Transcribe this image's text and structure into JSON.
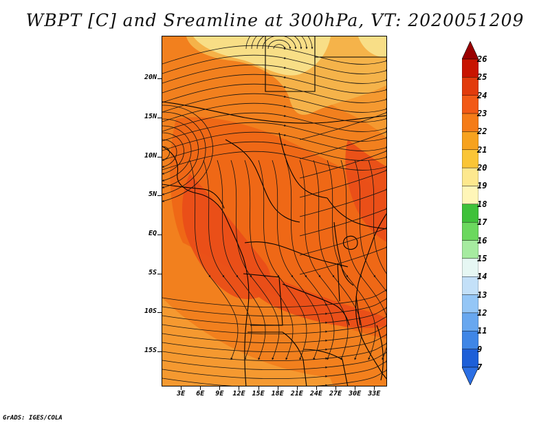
{
  "title": "WBPT [C] and Sreamline at 300hPa, VT: 2020051209",
  "footer": "GrADS: IGES/COLA",
  "map": {
    "variable": "WBPT",
    "level": "300hPa",
    "lat_labels": [
      "20N",
      "15N",
      "10N",
      "5N",
      "EQ",
      "5S",
      "10S",
      "15S"
    ],
    "lon_labels": [
      "3E",
      "6E",
      "9E",
      "12E",
      "15E",
      "18E",
      "21E",
      "24E",
      "27E",
      "30E",
      "33E"
    ],
    "lat_range": [
      -19.5,
      25.5
    ],
    "lon_range": [
      0,
      35
    ],
    "field_colors": {
      "v19": "#f8e08a",
      "v20": "#f4b44c",
      "v21": "#f49a32",
      "v22": "#f2801e",
      "v23": "#ee6616",
      "v24": "#e94e18"
    }
  },
  "colorbar": {
    "labels": [
      "26",
      "25",
      "24",
      "23",
      "22",
      "21",
      "20",
      "19",
      "18",
      "17",
      "16",
      "15",
      "14",
      "13",
      "12",
      "11",
      "9",
      "7"
    ],
    "colors": [
      "#aa0000",
      "#c81400",
      "#e23b0c",
      "#f25a16",
      "#f57c18",
      "#f7a21e",
      "#fac536",
      "#fde88e",
      "#fff6b8",
      "#3fc13a",
      "#6bd85e",
      "#a6eba0",
      "#e6f7f3",
      "#c3e0f8",
      "#94c6f6",
      "#68a7ef",
      "#3f86e6",
      "#1d5fd8",
      "#2567e0"
    ],
    "arrow_top_color": "#9a0000",
    "arrow_bottom_color": "#2b6fe4"
  }
}
